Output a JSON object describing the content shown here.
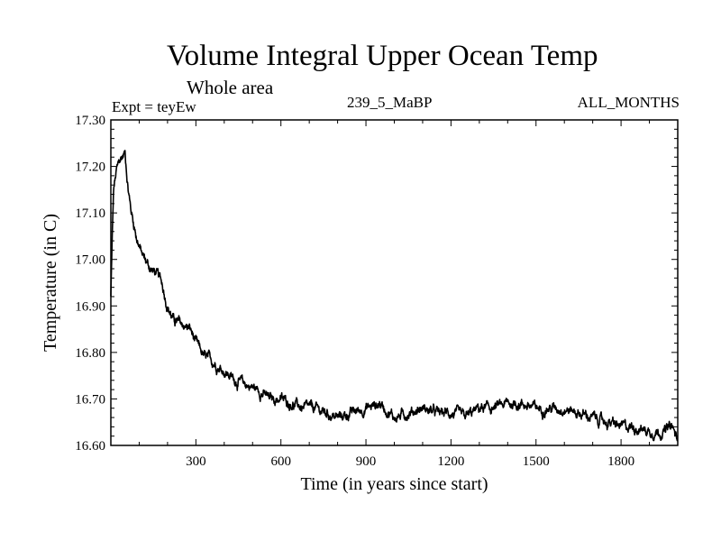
{
  "header": {
    "title": "Volume Integral Upper Ocean Temp",
    "subtitle": "Whole area",
    "expt": "Expt = teyEw",
    "run": "239_5_MaBP",
    "months": "ALL_MONTHS"
  },
  "chart_data": {
    "type": "line",
    "title": "Volume Integral Upper Ocean Temp",
    "xlabel": "Time (in years since start)",
    "ylabel": "Temperature (in C)",
    "xlim": [
      0,
      2000
    ],
    "ylim": [
      16.6,
      17.3
    ],
    "xticks": [
      300,
      600,
      900,
      1200,
      1500,
      1800
    ],
    "xtick_labels": [
      "300",
      "600",
      "900",
      "1200",
      "1500",
      "1800"
    ],
    "yticks": [
      16.6,
      16.7,
      16.8,
      16.9,
      17.0,
      17.1,
      17.2,
      17.3
    ],
    "ytick_labels": [
      "16.60",
      "16.70",
      "16.80",
      "16.90",
      "17.00",
      "17.10",
      "17.20",
      "17.30"
    ],
    "grid": false,
    "series": [
      {
        "name": "Volume integral temperature",
        "x": [
          0,
          5,
          10,
          20,
          30,
          40,
          50,
          60,
          70,
          80,
          90,
          100,
          110,
          120,
          140,
          160,
          180,
          200,
          220,
          250,
          280,
          300,
          330,
          360,
          400,
          440,
          480,
          520,
          560,
          600,
          640,
          680,
          720,
          760,
          800,
          850,
          900,
          950,
          1000,
          1050,
          1100,
          1150,
          1200,
          1250,
          1300,
          1350,
          1400,
          1450,
          1500,
          1550,
          1600,
          1650,
          1700,
          1750,
          1800,
          1850,
          1900,
          1950,
          1980,
          2000
        ],
        "y": [
          16.92,
          17.05,
          17.15,
          17.19,
          17.21,
          17.22,
          17.23,
          17.16,
          17.11,
          17.08,
          17.05,
          17.03,
          17.01,
          17.0,
          16.98,
          16.97,
          16.95,
          16.9,
          16.87,
          16.86,
          16.85,
          16.82,
          16.79,
          16.78,
          16.76,
          16.74,
          16.73,
          16.72,
          16.7,
          16.7,
          16.69,
          16.68,
          16.68,
          16.67,
          16.66,
          16.67,
          16.68,
          16.69,
          16.66,
          16.67,
          16.68,
          16.67,
          16.67,
          16.66,
          16.68,
          16.68,
          16.69,
          16.69,
          16.68,
          16.68,
          16.68,
          16.67,
          16.66,
          16.65,
          16.64,
          16.64,
          16.63,
          16.63,
          16.64,
          16.61
        ]
      }
    ]
  }
}
